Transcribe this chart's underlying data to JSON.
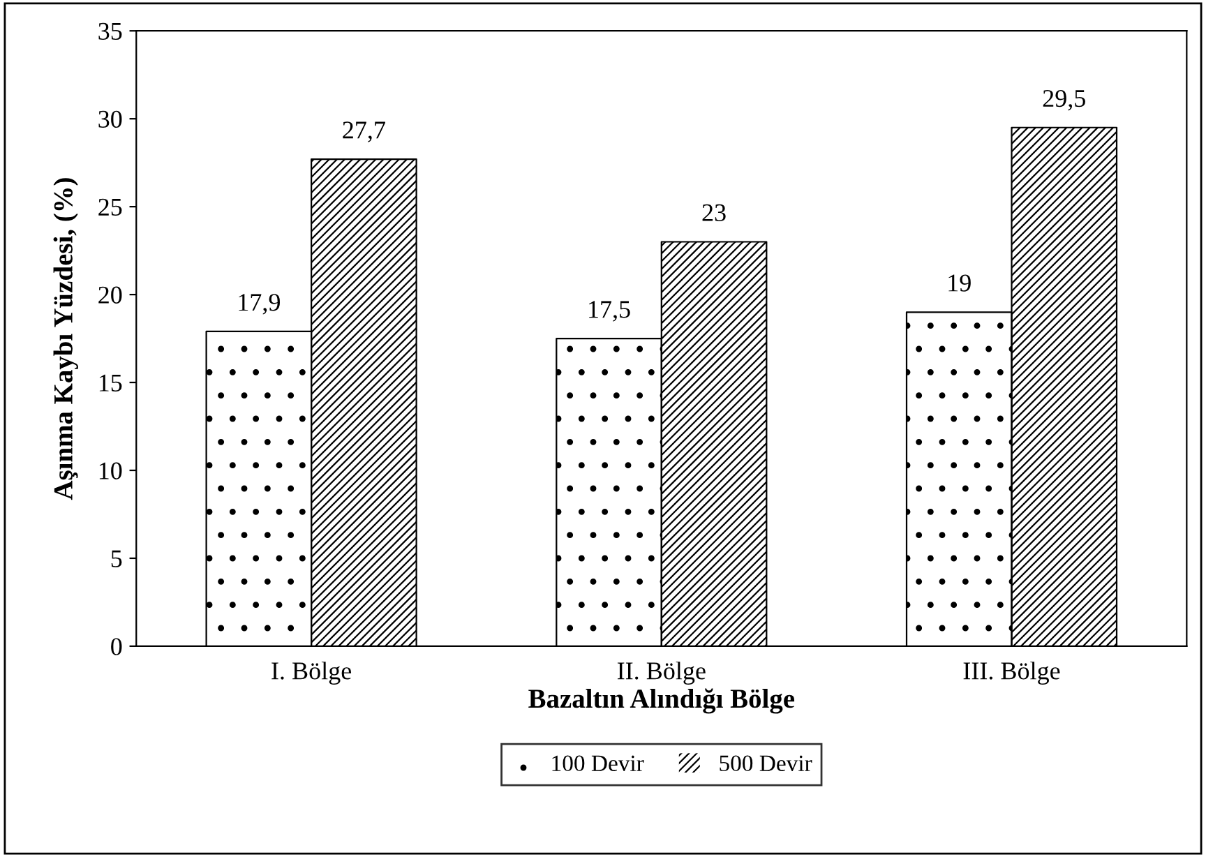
{
  "chart_data": {
    "type": "bar",
    "xlabel": "Bazaltın Alındığı Bölge",
    "ylabel": "Aşınma Kaybı Yüzdesi, (%)",
    "categories": [
      "I. Bölge",
      "II. Bölge",
      "III. Bölge"
    ],
    "series": [
      {
        "name": "100 Devir",
        "color": "#ffffff",
        "values": [
          17.9,
          17.5,
          19
        ],
        "value_labels": [
          "17,9",
          "17,5",
          "19"
        ]
      },
      {
        "name": "500 Devir",
        "color": "#ffffff",
        "values": [
          27.7,
          23,
          29.5
        ],
        "value_labels": [
          "27,7",
          "23",
          "29,5"
        ]
      }
    ],
    "ylim": [
      0,
      35
    ],
    "yticks": [
      0,
      5,
      10,
      15,
      20,
      25,
      30,
      35
    ],
    "grid": false,
    "legend": "bottom"
  }
}
